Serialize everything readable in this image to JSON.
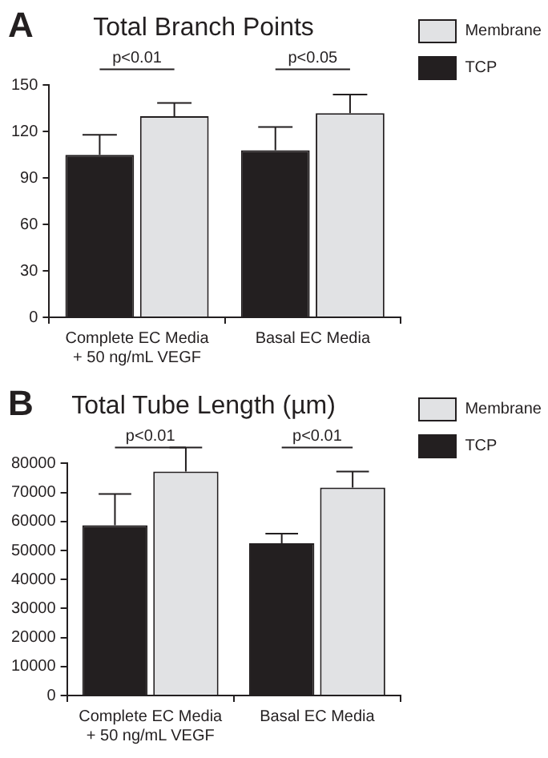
{
  "chart_data": [
    {
      "type": "bar",
      "title": "Total Branch Points",
      "categories": [
        "Complete EC Media\n+ 50 ng/mL VEGF",
        "Basal EC Media"
      ],
      "series": [
        {
          "name": "TCP",
          "color": "#231f20",
          "values": [
            105,
            108
          ],
          "errors": [
            [
              105,
              118
            ],
            [
              108,
              123
            ]
          ]
        },
        {
          "name": "Membrane",
          "color": "#e1e2e4",
          "values": [
            130,
            132
          ],
          "errors": [
            [
              130,
              138.5
            ],
            [
              132,
              144
            ]
          ]
        }
      ],
      "ylim": [
        0,
        150
      ],
      "yticks": [
        0,
        30,
        60,
        90,
        120,
        150
      ],
      "grid": false,
      "legend": "right",
      "annotations": [
        "A",
        "p<0.01",
        "p<0.05"
      ]
    },
    {
      "type": "bar",
      "title": "Total Tube Length (µm)",
      "categories": [
        "Complete EC Media\n+ 50 ng/mL VEGF",
        "Basal EC Media"
      ],
      "series": [
        {
          "name": "TCP",
          "color": "#231f20",
          "values": [
            58700,
            52500
          ],
          "errors": [
            [
              58700,
              69500
            ],
            [
              52500,
              55800
            ]
          ]
        },
        {
          "name": "Membrane",
          "color": "#e1e2e4",
          "values": [
            77200,
            71700
          ],
          "errors": [
            [
              77200,
              85500
            ],
            [
              71700,
              77200
            ]
          ]
        }
      ],
      "ylim": [
        0,
        80000
      ],
      "yticks": [
        0,
        10000,
        20000,
        30000,
        40000,
        50000,
        60000,
        70000,
        80000
      ],
      "grid": false,
      "legend": "right",
      "annotations": [
        "B",
        "p<0.01",
        "p<0.01"
      ]
    }
  ]
}
